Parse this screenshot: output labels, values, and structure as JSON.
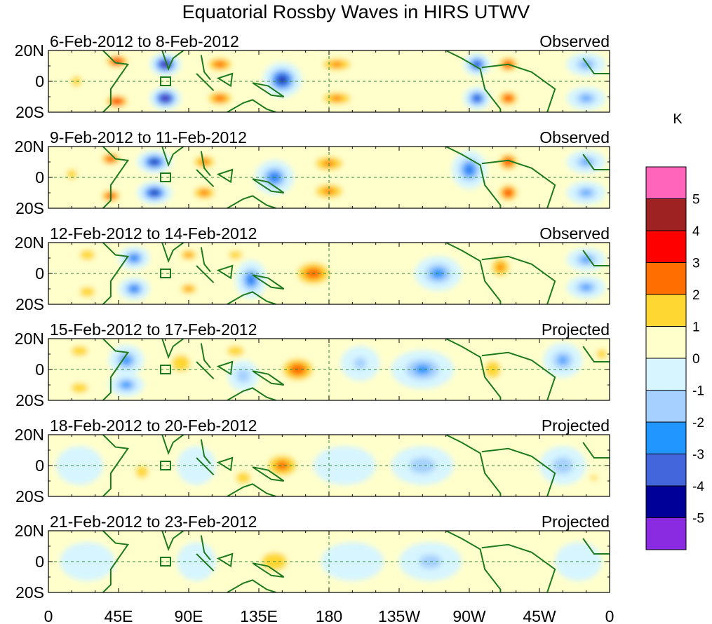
{
  "chart_data": {
    "type": "heatmap",
    "title": "Equatorial Rossby Waves in HIRS UTWV",
    "units": "K",
    "x_tick_labels": [
      "0",
      "45E",
      "90E",
      "135E",
      "180",
      "135W",
      "90W",
      "45W",
      "0"
    ],
    "y_tick_labels": [
      "20N",
      "0",
      "20S"
    ],
    "xlim": [
      0,
      360
    ],
    "ylim": [
      -20,
      20
    ],
    "colorbar": {
      "labels": [
        "5",
        "4",
        "3",
        "2",
        "1",
        "0",
        "-1",
        "-2",
        "-3",
        "-4",
        "-5"
      ],
      "colors": [
        "#ff66bb",
        "#9e2222",
        "#ff0000",
        "#ff6e00",
        "#ffd733",
        "#ffffcc",
        "#d6f5ff",
        "#a6d0ff",
        "#2196ff",
        "#4466dd",
        "#000099",
        "#8a2be2"
      ]
    },
    "panels": [
      {
        "date_range": "6-Feb-2012 to 8-Feb-2012",
        "label": "Observed",
        "features": [
          [
            44,
            13,
            9,
            5,
            3.5
          ],
          [
            44,
            -13,
            9,
            5,
            3.5
          ],
          [
            75,
            11,
            8,
            6,
            -5.5
          ],
          [
            75,
            -11,
            8,
            6,
            -5.5
          ],
          [
            110,
            11,
            11,
            6,
            2.5
          ],
          [
            110,
            -11,
            11,
            6,
            2.5
          ],
          [
            150,
            1,
            10,
            9,
            -4.5
          ],
          [
            185,
            11,
            14,
            6,
            2
          ],
          [
            185,
            -11,
            14,
            6,
            2
          ],
          [
            230,
            0,
            20,
            8,
            0.7
          ],
          [
            275,
            11,
            7,
            6,
            -4
          ],
          [
            275,
            -11,
            7,
            6,
            -4
          ],
          [
            295,
            11,
            8,
            6,
            3
          ],
          [
            295,
            -11,
            8,
            6,
            3
          ],
          [
            345,
            11,
            10,
            6,
            -2
          ],
          [
            345,
            -11,
            10,
            6,
            -2
          ],
          [
            18,
            0,
            8,
            8,
            1
          ]
        ]
      },
      {
        "date_range": "9-Feb-2012 to 11-Feb-2012",
        "label": "Observed",
        "features": [
          [
            40,
            12,
            8,
            5,
            3
          ],
          [
            40,
            -12,
            8,
            5,
            3
          ],
          [
            68,
            10,
            9,
            6,
            -4.5
          ],
          [
            68,
            -10,
            9,
            6,
            -4.5
          ],
          [
            100,
            10,
            10,
            6,
            2.2
          ],
          [
            100,
            -10,
            10,
            6,
            2.2
          ],
          [
            145,
            0,
            10,
            9,
            -3
          ],
          [
            180,
            9,
            14,
            7,
            2
          ],
          [
            180,
            -9,
            14,
            7,
            2
          ],
          [
            270,
            5,
            9,
            10,
            -3
          ],
          [
            295,
            10,
            8,
            7,
            3
          ],
          [
            295,
            -10,
            8,
            7,
            3
          ],
          [
            345,
            10,
            10,
            6,
            -2
          ],
          [
            345,
            -10,
            10,
            6,
            -2
          ],
          [
            15,
            2,
            8,
            8,
            1
          ]
        ]
      },
      {
        "date_range": "12-Feb-2012 to 14-Feb-2012",
        "label": "Observed",
        "features": [
          [
            25,
            12,
            9,
            6,
            1.5
          ],
          [
            25,
            -12,
            9,
            6,
            1.5
          ],
          [
            55,
            10,
            8,
            6,
            -3
          ],
          [
            55,
            -10,
            8,
            6,
            -3
          ],
          [
            90,
            12,
            8,
            5,
            2
          ],
          [
            90,
            -10,
            8,
            5,
            2
          ],
          [
            120,
            12,
            8,
            5,
            1.5
          ],
          [
            130,
            -4,
            8,
            10,
            -3
          ],
          [
            170,
            0,
            15,
            10,
            2.5
          ],
          [
            250,
            0,
            12,
            9,
            -2.5
          ],
          [
            290,
            4,
            9,
            9,
            2
          ],
          [
            345,
            9,
            10,
            6,
            -2.2
          ],
          [
            345,
            -9,
            10,
            6,
            -2.2
          ]
        ]
      },
      {
        "date_range": "15-Feb-2012 to 17-Feb-2012",
        "label": "Projected",
        "features": [
          [
            20,
            12,
            10,
            6,
            1.5
          ],
          [
            20,
            -12,
            10,
            6,
            1.5
          ],
          [
            50,
            6,
            9,
            8,
            -2.5
          ],
          [
            50,
            -10,
            9,
            6,
            -2.5
          ],
          [
            85,
            4,
            10,
            9,
            1.8
          ],
          [
            120,
            12,
            10,
            6,
            1.5
          ],
          [
            125,
            -4,
            8,
            8,
            -1.5
          ],
          [
            160,
            0,
            14,
            10,
            2.6
          ],
          [
            200,
            4,
            10,
            9,
            -1
          ],
          [
            240,
            0,
            16,
            10,
            -2.2
          ],
          [
            285,
            0,
            9,
            10,
            1.6
          ],
          [
            330,
            6,
            10,
            9,
            -2
          ],
          [
            355,
            10,
            6,
            6,
            1.5
          ]
        ]
      },
      {
        "date_range": "18-Feb-2012 to 20-Feb-2012",
        "label": "Projected",
        "features": [
          [
            20,
            0,
            12,
            10,
            -0.8
          ],
          [
            60,
            -4,
            10,
            10,
            1
          ],
          [
            95,
            0,
            10,
            10,
            -0.8
          ],
          [
            125,
            -8,
            10,
            8,
            1.2
          ],
          [
            150,
            0,
            14,
            10,
            2.2
          ],
          [
            190,
            0,
            16,
            10,
            -0.7
          ],
          [
            240,
            0,
            16,
            10,
            -1.4
          ],
          [
            290,
            -5,
            12,
            10,
            0.6
          ],
          [
            330,
            0,
            12,
            10,
            -1.5
          ],
          [
            350,
            -8,
            5,
            4,
            1.2
          ]
        ]
      },
      {
        "date_range": "21-Feb-2012 to 23-Feb-2012",
        "label": "Projected",
        "features": [
          [
            25,
            0,
            14,
            10,
            -0.8
          ],
          [
            60,
            0,
            12,
            10,
            0.8
          ],
          [
            95,
            0,
            10,
            10,
            -0.8
          ],
          [
            145,
            0,
            14,
            10,
            1.7
          ],
          [
            195,
            0,
            16,
            10,
            -0.7
          ],
          [
            245,
            0,
            16,
            10,
            -1.1
          ],
          [
            295,
            0,
            14,
            10,
            0.4
          ],
          [
            340,
            0,
            12,
            10,
            -0.8
          ]
        ]
      }
    ]
  }
}
